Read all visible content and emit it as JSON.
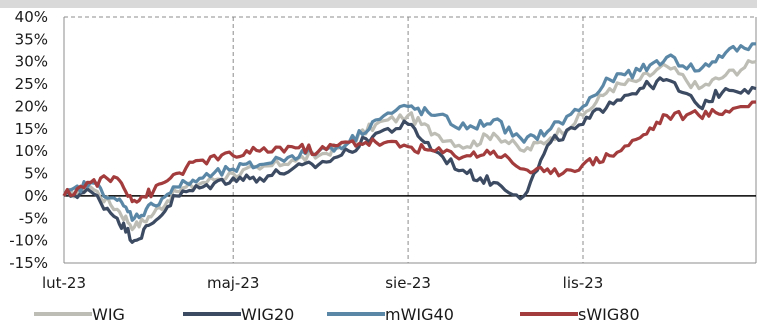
{
  "chart_data": {
    "type": "line",
    "title": "",
    "xlabel": "",
    "ylabel": "",
    "x_ticks": [
      "lut-23",
      "maj-23",
      "sie-23",
      "lis-23"
    ],
    "y_ticks": [
      "40%",
      "35%",
      "30%",
      "25%",
      "20%",
      "15%",
      "10%",
      "5%",
      "0%",
      "-5%",
      "-10%",
      "-15%"
    ],
    "ylim": [
      -15,
      40
    ],
    "x": [
      "2023-02-01",
      "2023-02-15",
      "2023-03-01",
      "2023-03-10",
      "2023-03-20",
      "2023-04-01",
      "2023-04-15",
      "2023-05-01",
      "2023-05-15",
      "2023-06-01",
      "2023-06-15",
      "2023-07-01",
      "2023-07-15",
      "2023-08-01",
      "2023-08-15",
      "2023-09-01",
      "2023-09-15",
      "2023-10-01",
      "2023-10-15",
      "2023-11-01",
      "2023-11-15",
      "2023-12-01",
      "2023-12-15",
      "2024-01-01",
      "2024-01-15",
      "2024-01-31"
    ],
    "grid": true,
    "legend_position": "bottom",
    "series": [
      {
        "name": "WIG",
        "color": "#bdbdb5",
        "values": [
          0,
          2,
          -3,
          -7,
          -4,
          1,
          3,
          5,
          6,
          8,
          9,
          12,
          16,
          18,
          14,
          11,
          14,
          10,
          13,
          18,
          24,
          26,
          29,
          24,
          27,
          30
        ]
      },
      {
        "name": "WIG20",
        "color": "#3c4a62",
        "values": [
          0,
          1,
          -5,
          -10,
          -6,
          0,
          2,
          4,
          4,
          6,
          7,
          10,
          14,
          16,
          10,
          5,
          3,
          0,
          12,
          16,
          21,
          24,
          26,
          20,
          24,
          24
        ]
      },
      {
        "name": "mWIG40",
        "color": "#5b87a6",
        "values": [
          0,
          3,
          -1,
          -5,
          -2,
          2,
          4,
          6,
          7,
          9,
          10,
          12,
          17,
          20,
          18,
          15,
          17,
          12,
          15,
          20,
          26,
          28,
          31,
          28,
          32,
          34
        ]
      },
      {
        "name": "sWIG80",
        "color": "#a33c3c",
        "values": [
          0,
          3,
          4,
          -1,
          1,
          5,
          8,
          9,
          10,
          11,
          10,
          12,
          12,
          11,
          10,
          9,
          10,
          6,
          5,
          7,
          9,
          13,
          18,
          18,
          19,
          21
        ]
      }
    ]
  }
}
